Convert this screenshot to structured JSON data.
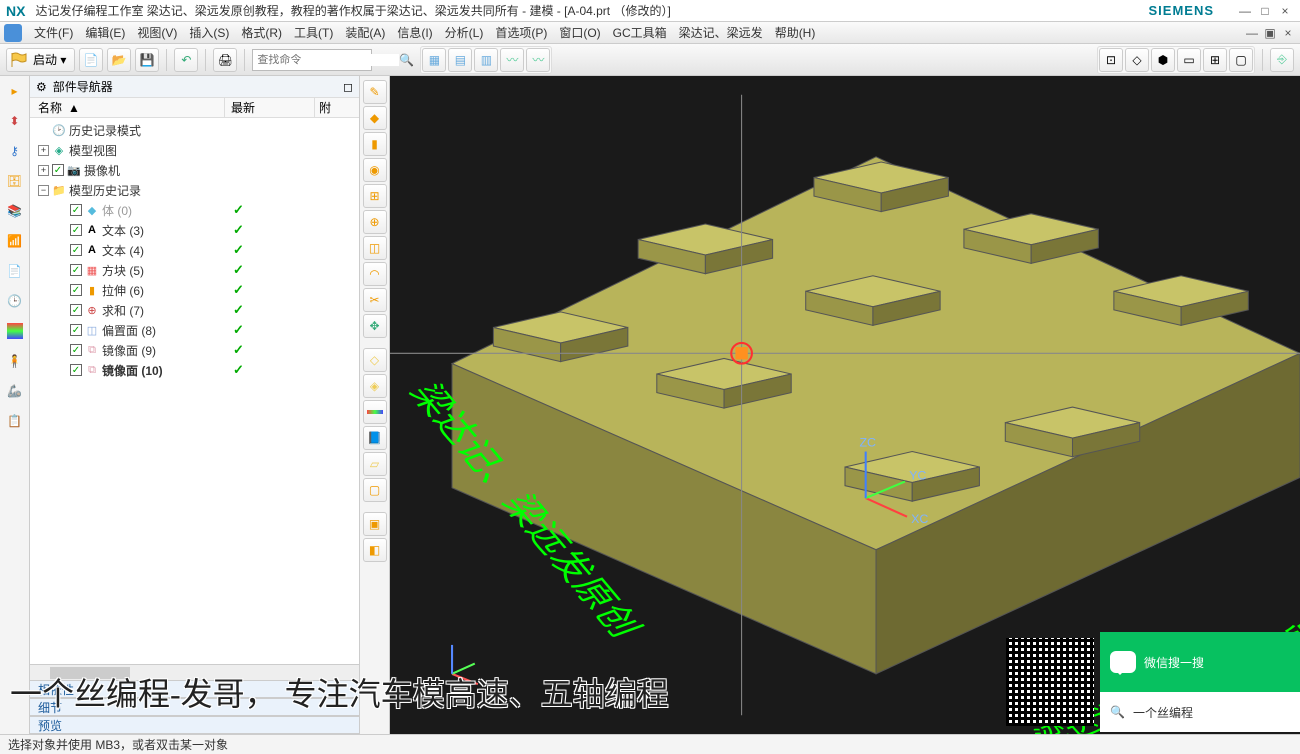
{
  "titlebar": {
    "logo": "NX",
    "title": "达记发仔编程工作室   梁达记、梁远发原创教程，教程的著作权属于梁达记、梁远发共同所有 - 建模 - [A-04.prt （修改的）]",
    "siemens": "SIEMENS"
  },
  "menu": {
    "items": [
      "文件(F)",
      "编辑(E)",
      "视图(V)",
      "插入(S)",
      "格式(R)",
      "工具(T)",
      "装配(A)",
      "信息(I)",
      "分析(L)",
      "首选项(P)",
      "窗口(O)",
      "GC工具箱",
      "梁达记、梁远发",
      "帮助(H)"
    ]
  },
  "toolbar": {
    "start": "启动 ▾",
    "search_placeholder": "查找命令"
  },
  "navigator": {
    "title": "部件导航器",
    "col_name": "名称",
    "col_latest": "最新",
    "col_extra": "附",
    "tree": [
      {
        "indent": 0,
        "exp": "",
        "chk": false,
        "icon": "🕑",
        "label": "历史记录模式",
        "tick": false,
        "bold": false,
        "iconColor": "#666"
      },
      {
        "indent": 0,
        "exp": "+",
        "chk": false,
        "icon": "◈",
        "label": "模型视图",
        "tick": false,
        "bold": false,
        "iconColor": "#2a8"
      },
      {
        "indent": 0,
        "exp": "+",
        "chk": true,
        "icon": "📷",
        "label": "摄像机",
        "tick": false,
        "bold": false,
        "iconColor": "#c80"
      },
      {
        "indent": 0,
        "exp": "−",
        "chk": false,
        "icon": "📁",
        "label": "模型历史记录",
        "tick": false,
        "bold": false,
        "iconColor": "#c80"
      },
      {
        "indent": 1,
        "exp": "",
        "chk": true,
        "icon": "◆",
        "label": "体 (0)",
        "tick": true,
        "bold": false,
        "iconColor": "#5bd",
        "gray": true
      },
      {
        "indent": 1,
        "exp": "",
        "chk": true,
        "icon": "A",
        "label": "文本 (3)",
        "tick": true,
        "bold": false,
        "iconColor": "#000",
        "iconBold": true
      },
      {
        "indent": 1,
        "exp": "",
        "chk": true,
        "icon": "A",
        "label": "文本 (4)",
        "tick": true,
        "bold": false,
        "iconColor": "#000",
        "iconBold": true
      },
      {
        "indent": 1,
        "exp": "",
        "chk": true,
        "icon": "▦",
        "label": "方块 (5)",
        "tick": true,
        "bold": false,
        "iconColor": "#e55"
      },
      {
        "indent": 1,
        "exp": "",
        "chk": true,
        "icon": "▮",
        "label": "拉伸 (6)",
        "tick": true,
        "bold": false,
        "iconColor": "#e90"
      },
      {
        "indent": 1,
        "exp": "",
        "chk": true,
        "icon": "⊕",
        "label": "求和 (7)",
        "tick": true,
        "bold": false,
        "iconColor": "#c44"
      },
      {
        "indent": 1,
        "exp": "",
        "chk": true,
        "icon": "◫",
        "label": "偏置面 (8)",
        "tick": true,
        "bold": false,
        "iconColor": "#8ad"
      },
      {
        "indent": 1,
        "exp": "",
        "chk": true,
        "icon": "⧉",
        "label": "镜像面 (9)",
        "tick": true,
        "bold": false,
        "iconColor": "#d9a"
      },
      {
        "indent": 1,
        "exp": "",
        "chk": true,
        "icon": "⧉",
        "label": "镜像面 (10)",
        "tick": true,
        "bold": true,
        "iconColor": "#d9a"
      }
    ],
    "sections": [
      "相依性",
      "细节",
      "预览"
    ]
  },
  "viewport": {
    "bg": "#1a1a1a",
    "block_top": "#b8b45a",
    "block_side1": "#8a8640",
    "block_side2": "#6e6a32",
    "crosshair": "#888",
    "origin_marker": {
      "red": "#ff3030",
      "orange": "#ff9020"
    },
    "axes": {
      "x": "#ff4040",
      "y": "#40ff40",
      "z": "#4080ff",
      "labels": [
        "XC",
        "YC",
        "ZC"
      ],
      "label_color": "#7fb3ff"
    },
    "text1": "梁达记、梁远发原创",
    "text2": "梁达记、梁远发版权所有",
    "pad_tops": [
      [
        410,
        80,
        475,
        65,
        540,
        80,
        475,
        95
      ],
      [
        240,
        140,
        305,
        125,
        370,
        140,
        305,
        155
      ],
      [
        555,
        130,
        620,
        115,
        685,
        130,
        620,
        145
      ],
      [
        402,
        190,
        467,
        175,
        532,
        190,
        467,
        205
      ],
      [
        700,
        190,
        765,
        175,
        830,
        190,
        765,
        205
      ],
      [
        100,
        225,
        165,
        210,
        230,
        225,
        165,
        240
      ],
      [
        258,
        270,
        323,
        255,
        388,
        270,
        323,
        285
      ],
      [
        440,
        360,
        505,
        345,
        570,
        360,
        505,
        375
      ],
      [
        595,
        317,
        660,
        302,
        725,
        317,
        660,
        332
      ]
    ]
  },
  "caption": "一个丝编程-发哥，    专注汽车模高速、五轴编程",
  "wechat": {
    "top": "微信搜一搜",
    "bot": "一个丝编程"
  },
  "status": "选择对象并使用 MB3，或者双击某一对象"
}
